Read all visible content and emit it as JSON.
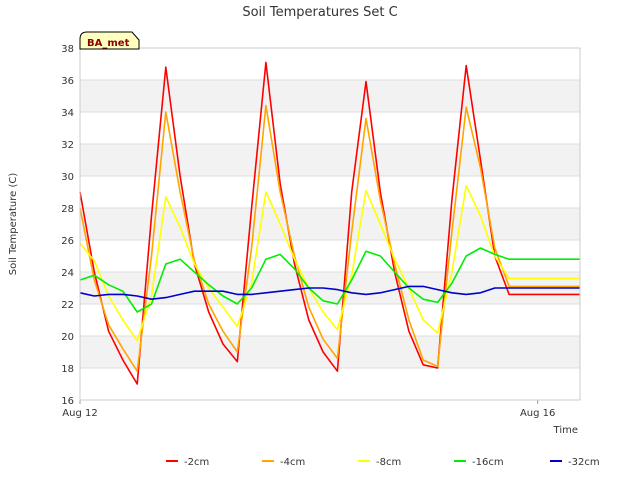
{
  "chart_data": {
    "type": "line",
    "title": "Soil Temperatures Set C",
    "xlabel": "Time",
    "ylabel": "Soil Temperature (C)",
    "badge": "BA_met",
    "x_ticks": [
      {
        "day": 0,
        "label": "Aug 12"
      },
      {
        "day": 4,
        "label": "Aug 16"
      }
    ],
    "xlim": [
      0,
      4.37
    ],
    "ylim": [
      16,
      38
    ],
    "y_ticks": [
      16,
      18,
      20,
      22,
      24,
      26,
      28,
      30,
      32,
      34,
      36,
      38
    ],
    "grid": true,
    "legend_position": "bottom-center",
    "x_unit": "days since Aug 12 00:00",
    "x": [
      0,
      0.125,
      0.25,
      0.375,
      0.5,
      0.625,
      0.75,
      0.875,
      1.0,
      1.125,
      1.25,
      1.375,
      1.5,
      1.625,
      1.75,
      1.875,
      2.0,
      2.125,
      2.25,
      2.375,
      2.5,
      2.625,
      2.75,
      2.875,
      3.0,
      3.125,
      3.25,
      3.375,
      3.5,
      3.625,
      3.75,
      3.875,
      4.0,
      4.125,
      4.25,
      4.37
    ],
    "series": [
      {
        "name": "-2cm",
        "color": "#ff0000",
        "values": [
          29.0,
          24.0,
          20.3,
          18.5,
          17.0,
          27.5,
          36.8,
          30.0,
          24.5,
          21.5,
          19.5,
          18.4,
          28.0,
          37.1,
          29.5,
          24.5,
          21.0,
          19.0,
          17.8,
          29.0,
          35.9,
          29.0,
          24.0,
          20.3,
          18.2,
          18.0,
          28.5,
          36.9,
          31.0,
          25.0,
          22.6,
          22.6,
          22.6,
          22.6,
          22.6,
          22.6
        ]
      },
      {
        "name": "-4cm",
        "color": "#ffa500",
        "values": [
          28.0,
          23.5,
          20.7,
          19.2,
          17.8,
          25.0,
          34.0,
          29.0,
          24.7,
          22.0,
          20.3,
          19.0,
          25.5,
          34.4,
          29.0,
          25.0,
          21.8,
          19.8,
          18.6,
          26.5,
          33.6,
          28.5,
          24.5,
          21.0,
          18.5,
          18.1,
          26.5,
          34.3,
          30.5,
          25.5,
          23.1,
          23.1,
          23.1,
          23.1,
          23.1,
          23.1
        ]
      },
      {
        "name": "-8cm",
        "color": "#ffff00",
        "values": [
          25.8,
          24.7,
          22.5,
          21.0,
          19.7,
          22.5,
          28.7,
          26.8,
          24.5,
          23.0,
          21.8,
          20.6,
          23.3,
          29.0,
          27.0,
          24.8,
          23.0,
          21.5,
          20.4,
          23.8,
          29.1,
          27.0,
          24.8,
          23.0,
          21.0,
          20.2,
          24.0,
          29.4,
          27.5,
          25.0,
          23.6,
          23.6,
          23.6,
          23.6,
          23.6,
          23.6
        ]
      },
      {
        "name": "-16cm",
        "color": "#00ee00",
        "values": [
          23.5,
          23.8,
          23.2,
          22.8,
          21.5,
          22.0,
          24.5,
          24.8,
          24.0,
          23.2,
          22.5,
          22.0,
          23.0,
          24.8,
          25.1,
          24.2,
          23.0,
          22.2,
          22.0,
          23.5,
          25.3,
          25.0,
          24.0,
          23.0,
          22.3,
          22.1,
          23.3,
          25.0,
          25.5,
          25.1,
          24.8,
          24.8,
          24.8,
          24.8,
          24.8,
          24.8
        ]
      },
      {
        "name": "-32cm",
        "color": "#0000cc",
        "values": [
          22.7,
          22.5,
          22.6,
          22.6,
          22.5,
          22.3,
          22.4,
          22.6,
          22.8,
          22.8,
          22.8,
          22.6,
          22.6,
          22.7,
          22.8,
          22.9,
          23.0,
          23.0,
          22.9,
          22.7,
          22.6,
          22.7,
          22.9,
          23.1,
          23.1,
          22.9,
          22.7,
          22.6,
          22.7,
          23.0,
          23.0,
          23.0,
          23.0,
          23.0,
          23.0,
          23.0
        ]
      }
    ]
  }
}
